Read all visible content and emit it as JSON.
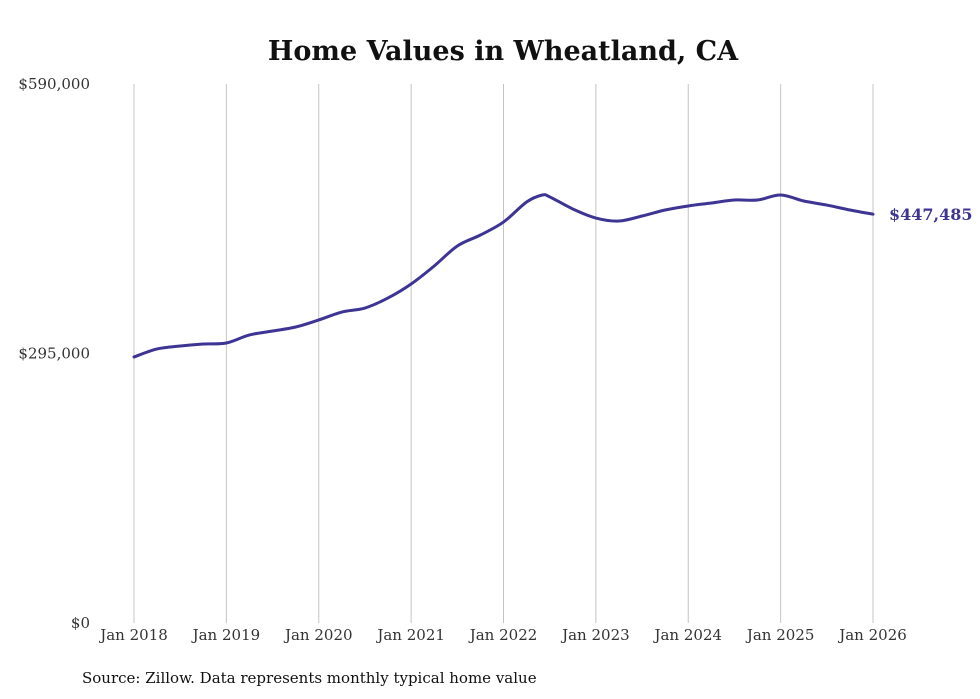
{
  "chart_data": {
    "type": "line",
    "title": "Home Values in Wheatland, CA",
    "xlabel": "",
    "ylabel": "",
    "source": "Source: Zillow. Data represents monthly typical home value",
    "ylim": [
      0,
      590000
    ],
    "xlim": [
      2018.0,
      2026.0
    ],
    "grid": "vertical",
    "y_ticks": [
      {
        "value": 0,
        "label": "$0"
      },
      {
        "value": 295000,
        "label": "$295,000"
      },
      {
        "value": 590000,
        "label": "$590,000"
      }
    ],
    "x_ticks": [
      {
        "value": 2018,
        "label": "Jan 2018"
      },
      {
        "value": 2019,
        "label": "Jan 2019"
      },
      {
        "value": 2020,
        "label": "Jan 2020"
      },
      {
        "value": 2021,
        "label": "Jan 2021"
      },
      {
        "value": 2022,
        "label": "Jan 2022"
      },
      {
        "value": 2023,
        "label": "Jan 2023"
      },
      {
        "value": 2024,
        "label": "Jan 2024"
      },
      {
        "value": 2025,
        "label": "Jan 2025"
      },
      {
        "value": 2026,
        "label": "Jan 2026"
      }
    ],
    "series": [
      {
        "name": "Typical home value",
        "color": "#3d3494",
        "end_label": "$447,485",
        "x": [
          2018.0,
          2018.25,
          2018.5,
          2018.75,
          2019.0,
          2019.25,
          2019.5,
          2019.75,
          2020.0,
          2020.25,
          2020.5,
          2020.75,
          2021.0,
          2021.25,
          2021.5,
          2021.75,
          2022.0,
          2022.25,
          2022.42,
          2022.5,
          2022.75,
          2023.0,
          2023.25,
          2023.5,
          2023.75,
          2024.0,
          2024.25,
          2024.5,
          2024.75,
          2025.0,
          2025.25,
          2025.5,
          2025.75,
          2026.0
        ],
        "values": [
          291200,
          300000,
          303200,
          305400,
          306500,
          315300,
          319600,
          324000,
          331700,
          340400,
          344800,
          355800,
          371100,
          390800,
          412700,
          424700,
          438900,
          460800,
          468500,
          466500,
          453200,
          443300,
          440000,
          445500,
          452100,
          456500,
          459700,
          463000,
          463000,
          468500,
          461900,
          457500,
          452100,
          447485
        ]
      }
    ]
  }
}
